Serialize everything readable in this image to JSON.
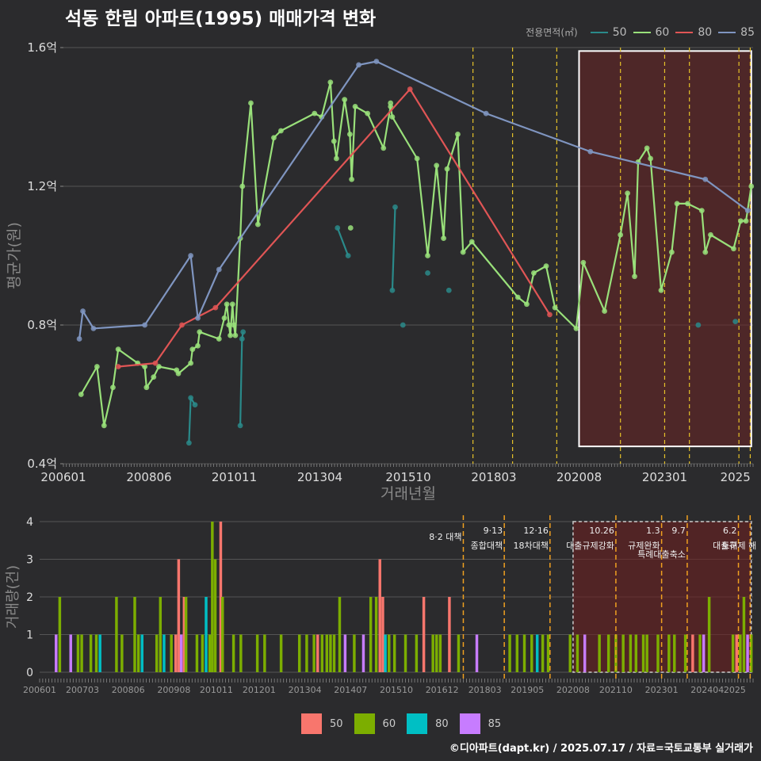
{
  "title": "석동 한림 아파트(1995) 매매가격 변화",
  "credit": "©디아파트(dapt.kr) / 2025.07.17 / 자료=국토교통부 실거래가",
  "legend_title": "전용면적(㎡)",
  "colors": {
    "s50": "#2a8a8a",
    "s60": "#99e07a",
    "s80": "#e05555",
    "s85": "#7f95c0",
    "b50": "#f8766d",
    "b60": "#7cae00",
    "b80": "#00bfc4",
    "b85": "#c77cff",
    "policy": "#e6c229",
    "highlight": "#5a2020"
  },
  "chart_data": [
    {
      "type": "line",
      "title": "석동 한림 아파트(1995) 매매가격 변화",
      "xlabel": "거래년월",
      "ylabel": "평균가(원)",
      "xlim": [
        2006.0,
        2025.5
      ],
      "ylim": [
        0.4,
        1.6
      ],
      "ytick_values": [
        0.4,
        0.8,
        1.2,
        1.6
      ],
      "ytick_labels": [
        "0.4억",
        "0.8억",
        "1.2억",
        "1.6억"
      ],
      "xtick_values": [
        2006.0,
        2008.42,
        2010.83,
        2013.25,
        2015.75,
        2018.17,
        2020.58,
        2023.0,
        2025.0
      ],
      "xtick_labels": [
        "200601",
        "200806",
        "201011",
        "201304",
        "201510",
        "201803",
        "202008",
        "202301",
        "2025"
      ],
      "highlight": {
        "x0": 2020.58,
        "x1": 2025.45,
        "y0": 0.45,
        "y1": 1.59
      },
      "policy_lines": [
        2017.58,
        2018.7,
        2019.95,
        2021.75,
        2023.0,
        2023.7,
        2025.1,
        2025.42
      ],
      "series": [
        {
          "name": "50",
          "segments": [
            [
              [
                2009.55,
                0.46
              ],
              [
                2009.6,
                0.59
              ],
              [
                2009.72,
                0.57
              ]
            ],
            [
              [
                2011.0,
                0.51
              ],
              [
                2011.05,
                0.76
              ],
              [
                2011.08,
                0.78
              ]
            ],
            [
              [
                2013.75,
                1.08
              ],
              [
                2014.05,
                1.0
              ]
            ],
            [
              [
                2015.3,
                0.9
              ],
              [
                2015.38,
                1.14
              ]
            ],
            [
              [
                2015.6,
                0.8
              ]
            ],
            [
              [
                2016.3,
                0.95
              ]
            ],
            [
              [
                2016.9,
                0.9
              ]
            ],
            [
              [
                2023.95,
                0.8
              ]
            ],
            [
              [
                2025.0,
                0.81
              ]
            ]
          ]
        },
        {
          "name": "60",
          "points": [
            [
              2006.5,
              0.6
            ],
            [
              2006.95,
              0.68
            ],
            [
              2007.15,
              0.51
            ],
            [
              2007.4,
              0.62
            ],
            [
              2007.55,
              0.73
            ],
            [
              2008.1,
              0.69
            ],
            [
              2008.3,
              0.68
            ],
            [
              2008.35,
              0.62
            ],
            [
              2008.55,
              0.65
            ],
            [
              2008.7,
              0.68
            ],
            [
              2009.2,
              0.67
            ],
            [
              2009.25,
              0.66
            ],
            [
              2009.6,
              0.69
            ],
            [
              2009.65,
              0.73
            ],
            [
              2009.8,
              0.74
            ],
            [
              2009.85,
              0.78
            ],
            [
              2010.4,
              0.76
            ],
            [
              2010.55,
              0.82
            ],
            [
              2010.62,
              0.86
            ],
            [
              2010.68,
              0.8
            ],
            [
              2010.72,
              0.77
            ],
            [
              2010.78,
              0.86
            ],
            [
              2010.82,
              0.8
            ],
            [
              2010.86,
              0.77
            ],
            [
              2011.0,
              1.05
            ],
            [
              2011.06,
              1.2
            ],
            [
              2011.3,
              1.44
            ],
            [
              2011.5,
              1.09
            ],
            [
              2011.95,
              1.34
            ],
            [
              2012.15,
              1.36
            ],
            [
              2013.1,
              1.41
            ],
            [
              2013.3,
              1.4
            ],
            [
              2013.55,
              1.5
            ],
            [
              2013.65,
              1.33
            ],
            [
              2013.72,
              1.28
            ],
            [
              2013.95,
              1.45
            ],
            [
              2014.1,
              1.35
            ],
            [
              2014.15,
              1.22
            ],
            [
              2014.25,
              1.43
            ],
            [
              2014.6,
              1.41
            ],
            [
              2015.05,
              1.31
            ],
            [
              2015.25,
              1.43
            ],
            [
              2015.3,
              1.4
            ],
            [
              2016.0,
              1.28
            ],
            [
              2016.3,
              1.0
            ],
            [
              2016.55,
              1.26
            ],
            [
              2016.75,
              1.05
            ],
            [
              2016.85,
              1.25
            ],
            [
              2017.15,
              1.35
            ],
            [
              2017.3,
              1.01
            ],
            [
              2017.55,
              1.04
            ],
            [
              2018.85,
              0.88
            ],
            [
              2019.1,
              0.86
            ],
            [
              2019.3,
              0.95
            ],
            [
              2019.65,
              0.97
            ],
            [
              2019.9,
              0.85
            ],
            [
              2020.5,
              0.79
            ],
            [
              2020.7,
              0.98
            ],
            [
              2021.3,
              0.84
            ],
            [
              2021.75,
              1.06
            ],
            [
              2021.95,
              1.18
            ],
            [
              2022.15,
              0.94
            ],
            [
              2022.25,
              1.27
            ],
            [
              2022.5,
              1.31
            ],
            [
              2022.6,
              1.28
            ],
            [
              2022.9,
              0.9
            ],
            [
              2023.2,
              1.01
            ],
            [
              2023.35,
              1.15
            ],
            [
              2023.65,
              1.15
            ],
            [
              2024.05,
              1.13
            ],
            [
              2024.15,
              1.01
            ],
            [
              2024.3,
              1.06
            ],
            [
              2024.95,
              1.02
            ],
            [
              2025.15,
              1.1
            ],
            [
              2025.3,
              1.1
            ],
            [
              2025.45,
              1.2
            ]
          ],
          "extra_points": [
            [
              2014.12,
              1.08
            ],
            [
              2015.25,
              1.44
            ]
          ]
        },
        {
          "name": "80",
          "points": [
            [
              2007.55,
              0.68
            ],
            [
              2008.6,
              0.69
            ],
            [
              2009.35,
              0.8
            ],
            [
              2010.3,
              0.85
            ],
            [
              2015.8,
              1.48
            ],
            [
              2019.75,
              0.83
            ]
          ]
        },
        {
          "name": "85",
          "points": [
            [
              2006.45,
              0.76
            ],
            [
              2006.55,
              0.84
            ],
            [
              2006.85,
              0.79
            ],
            [
              2008.3,
              0.8
            ],
            [
              2009.6,
              1.0
            ],
            [
              2009.8,
              0.82
            ],
            [
              2010.4,
              0.96
            ],
            [
              2014.35,
              1.55
            ],
            [
              2014.85,
              1.56
            ],
            [
              2017.95,
              1.41
            ],
            [
              2020.9,
              1.3
            ],
            [
              2024.15,
              1.22
            ],
            [
              2025.35,
              1.13
            ]
          ]
        }
      ]
    },
    {
      "type": "bar",
      "title": "거래량",
      "xlabel": "",
      "ylabel": "거래량(건)",
      "xlim": [
        2006.0,
        2025.5
      ],
      "ylim": [
        0,
        4
      ],
      "ytick_values": [
        0,
        1,
        2,
        3,
        4
      ],
      "ytick_labels": [
        "0",
        "1",
        "2",
        "3",
        "4"
      ],
      "xtick_values": [
        2006.0,
        2007.17,
        2008.42,
        2009.67,
        2010.83,
        2012.0,
        2013.25,
        2014.5,
        2015.75,
        2017.0,
        2018.17,
        2019.33,
        2020.58,
        2021.75,
        2023.0,
        2024.25,
        2025.0
      ],
      "xtick_labels": [
        "200601",
        "200703",
        "200806",
        "200908",
        "201011",
        "201201",
        "201304",
        "201407",
        "201510",
        "201612",
        "201803",
        "201905",
        "202008",
        "202110",
        "202301",
        "202404",
        "2025"
      ],
      "highlight": {
        "x0": 2020.58,
        "x1": 2025.45,
        "y0": 0,
        "y1": 4
      },
      "policy_lines": [
        {
          "x": 2017.58,
          "label1": "8·2 대책",
          "label2": ""
        },
        {
          "x": 2018.7,
          "label1": "9·13",
          "label2": "종합대책"
        },
        {
          "x": 2019.95,
          "label1": "12·16",
          "label2": "18차대책"
        },
        {
          "x": 2021.75,
          "label1": "10.26",
          "label2": "대출규제강화"
        },
        {
          "x": 2023.0,
          "label1": "1.3",
          "label2": "규제완화"
        },
        {
          "x": 2023.7,
          "label1": "9.7",
          "label2": "특례대출축소"
        },
        {
          "x": 2025.1,
          "label1": "6.2",
          "label2": "대출규"
        },
        {
          "x": 2025.42,
          "label1": "",
          "label2": "토허제 해"
        }
      ],
      "bars": [
        {
          "x": 2006.45,
          "y": 1,
          "s": "85"
        },
        {
          "x": 2006.55,
          "y": 2,
          "s": "60"
        },
        {
          "x": 2006.85,
          "y": 1,
          "s": "85"
        },
        {
          "x": 2007.05,
          "y": 1,
          "s": "60"
        },
        {
          "x": 2007.15,
          "y": 1,
          "s": "60"
        },
        {
          "x": 2007.4,
          "y": 1,
          "s": "60"
        },
        {
          "x": 2007.55,
          "y": 1,
          "s": "60"
        },
        {
          "x": 2007.65,
          "y": 1,
          "s": "80"
        },
        {
          "x": 2008.1,
          "y": 2,
          "s": "60"
        },
        {
          "x": 2008.25,
          "y": 1,
          "s": "60"
        },
        {
          "x": 2008.6,
          "y": 2,
          "s": "60"
        },
        {
          "x": 2008.7,
          "y": 1,
          "s": "60"
        },
        {
          "x": 2008.8,
          "y": 1,
          "s": "80"
        },
        {
          "x": 2009.2,
          "y": 1,
          "s": "60"
        },
        {
          "x": 2009.3,
          "y": 2,
          "s": "60"
        },
        {
          "x": 2009.4,
          "y": 1,
          "s": "80"
        },
        {
          "x": 2009.6,
          "y": 1,
          "s": "60"
        },
        {
          "x": 2009.72,
          "y": 1,
          "s": "50"
        },
        {
          "x": 2009.8,
          "y": 3,
          "s": "50"
        },
        {
          "x": 2009.87,
          "y": 1,
          "s": "85"
        },
        {
          "x": 2009.95,
          "y": 2,
          "s": "50"
        },
        {
          "x": 2010.0,
          "y": 2,
          "s": "60"
        },
        {
          "x": 2010.3,
          "y": 1,
          "s": "60"
        },
        {
          "x": 2010.45,
          "y": 1,
          "s": "60"
        },
        {
          "x": 2010.55,
          "y": 2,
          "s": "80"
        },
        {
          "x": 2010.65,
          "y": 1,
          "s": "60"
        },
        {
          "x": 2010.72,
          "y": 4,
          "s": "60"
        },
        {
          "x": 2010.8,
          "y": 3,
          "s": "60"
        },
        {
          "x": 2010.95,
          "y": 4,
          "s": "50"
        },
        {
          "x": 2011.0,
          "y": 2,
          "s": "60"
        },
        {
          "x": 2011.3,
          "y": 1,
          "s": "60"
        },
        {
          "x": 2011.5,
          "y": 1,
          "s": "60"
        },
        {
          "x": 2011.95,
          "y": 1,
          "s": "60"
        },
        {
          "x": 2012.15,
          "y": 1,
          "s": "60"
        },
        {
          "x": 2012.6,
          "y": 1,
          "s": "60"
        },
        {
          "x": 2013.1,
          "y": 1,
          "s": "60"
        },
        {
          "x": 2013.3,
          "y": 1,
          "s": "60"
        },
        {
          "x": 2013.5,
          "y": 1,
          "s": "60"
        },
        {
          "x": 2013.6,
          "y": 1,
          "s": "50"
        },
        {
          "x": 2013.72,
          "y": 1,
          "s": "60"
        },
        {
          "x": 2013.85,
          "y": 1,
          "s": "60"
        },
        {
          "x": 2013.95,
          "y": 1,
          "s": "60"
        },
        {
          "x": 2014.05,
          "y": 1,
          "s": "60"
        },
        {
          "x": 2014.2,
          "y": 2,
          "s": "60"
        },
        {
          "x": 2014.35,
          "y": 1,
          "s": "85"
        },
        {
          "x": 2014.6,
          "y": 1,
          "s": "60"
        },
        {
          "x": 2014.85,
          "y": 1,
          "s": "85"
        },
        {
          "x": 2015.05,
          "y": 2,
          "s": "60"
        },
        {
          "x": 2015.2,
          "y": 2,
          "s": "60"
        },
        {
          "x": 2015.3,
          "y": 3,
          "s": "50"
        },
        {
          "x": 2015.38,
          "y": 2,
          "s": "50"
        },
        {
          "x": 2015.45,
          "y": 1,
          "s": "80"
        },
        {
          "x": 2015.55,
          "y": 1,
          "s": "60"
        },
        {
          "x": 2015.7,
          "y": 1,
          "s": "60"
        },
        {
          "x": 2016.0,
          "y": 1,
          "s": "60"
        },
        {
          "x": 2016.3,
          "y": 1,
          "s": "60"
        },
        {
          "x": 2016.5,
          "y": 2,
          "s": "50"
        },
        {
          "x": 2016.75,
          "y": 1,
          "s": "60"
        },
        {
          "x": 2016.85,
          "y": 1,
          "s": "60"
        },
        {
          "x": 2016.95,
          "y": 1,
          "s": "60"
        },
        {
          "x": 2017.2,
          "y": 2,
          "s": "50"
        },
        {
          "x": 2017.45,
          "y": 1,
          "s": "60"
        },
        {
          "x": 2017.95,
          "y": 1,
          "s": "85"
        },
        {
          "x": 2018.85,
          "y": 1,
          "s": "60"
        },
        {
          "x": 2019.05,
          "y": 1,
          "s": "60"
        },
        {
          "x": 2019.25,
          "y": 1,
          "s": "60"
        },
        {
          "x": 2019.45,
          "y": 1,
          "s": "60"
        },
        {
          "x": 2019.6,
          "y": 1,
          "s": "80"
        },
        {
          "x": 2019.75,
          "y": 1,
          "s": "60"
        },
        {
          "x": 2019.9,
          "y": 1,
          "s": "60"
        },
        {
          "x": 2020.5,
          "y": 1,
          "s": "60"
        },
        {
          "x": 2020.7,
          "y": 1,
          "s": "60"
        },
        {
          "x": 2020.9,
          "y": 1,
          "s": "85"
        },
        {
          "x": 2021.3,
          "y": 1,
          "s": "60"
        },
        {
          "x": 2021.55,
          "y": 1,
          "s": "60"
        },
        {
          "x": 2021.75,
          "y": 1,
          "s": "60"
        },
        {
          "x": 2021.95,
          "y": 1,
          "s": "60"
        },
        {
          "x": 2022.15,
          "y": 1,
          "s": "60"
        },
        {
          "x": 2022.3,
          "y": 1,
          "s": "60"
        },
        {
          "x": 2022.5,
          "y": 1,
          "s": "60"
        },
        {
          "x": 2022.6,
          "y": 1,
          "s": "60"
        },
        {
          "x": 2022.9,
          "y": 1,
          "s": "60"
        },
        {
          "x": 2023.2,
          "y": 1,
          "s": "60"
        },
        {
          "x": 2023.35,
          "y": 1,
          "s": "60"
        },
        {
          "x": 2023.65,
          "y": 1,
          "s": "60"
        },
        {
          "x": 2023.85,
          "y": 1,
          "s": "50"
        },
        {
          "x": 2024.05,
          "y": 1,
          "s": "60"
        },
        {
          "x": 2024.15,
          "y": 1,
          "s": "85"
        },
        {
          "x": 2024.3,
          "y": 2,
          "s": "60"
        },
        {
          "x": 2024.95,
          "y": 1,
          "s": "60"
        },
        {
          "x": 2025.05,
          "y": 1,
          "s": "50"
        },
        {
          "x": 2025.15,
          "y": 1,
          "s": "60"
        },
        {
          "x": 2025.25,
          "y": 2,
          "s": "60"
        },
        {
          "x": 2025.35,
          "y": 1,
          "s": "85"
        },
        {
          "x": 2025.45,
          "y": 1,
          "s": "60"
        }
      ]
    }
  ]
}
